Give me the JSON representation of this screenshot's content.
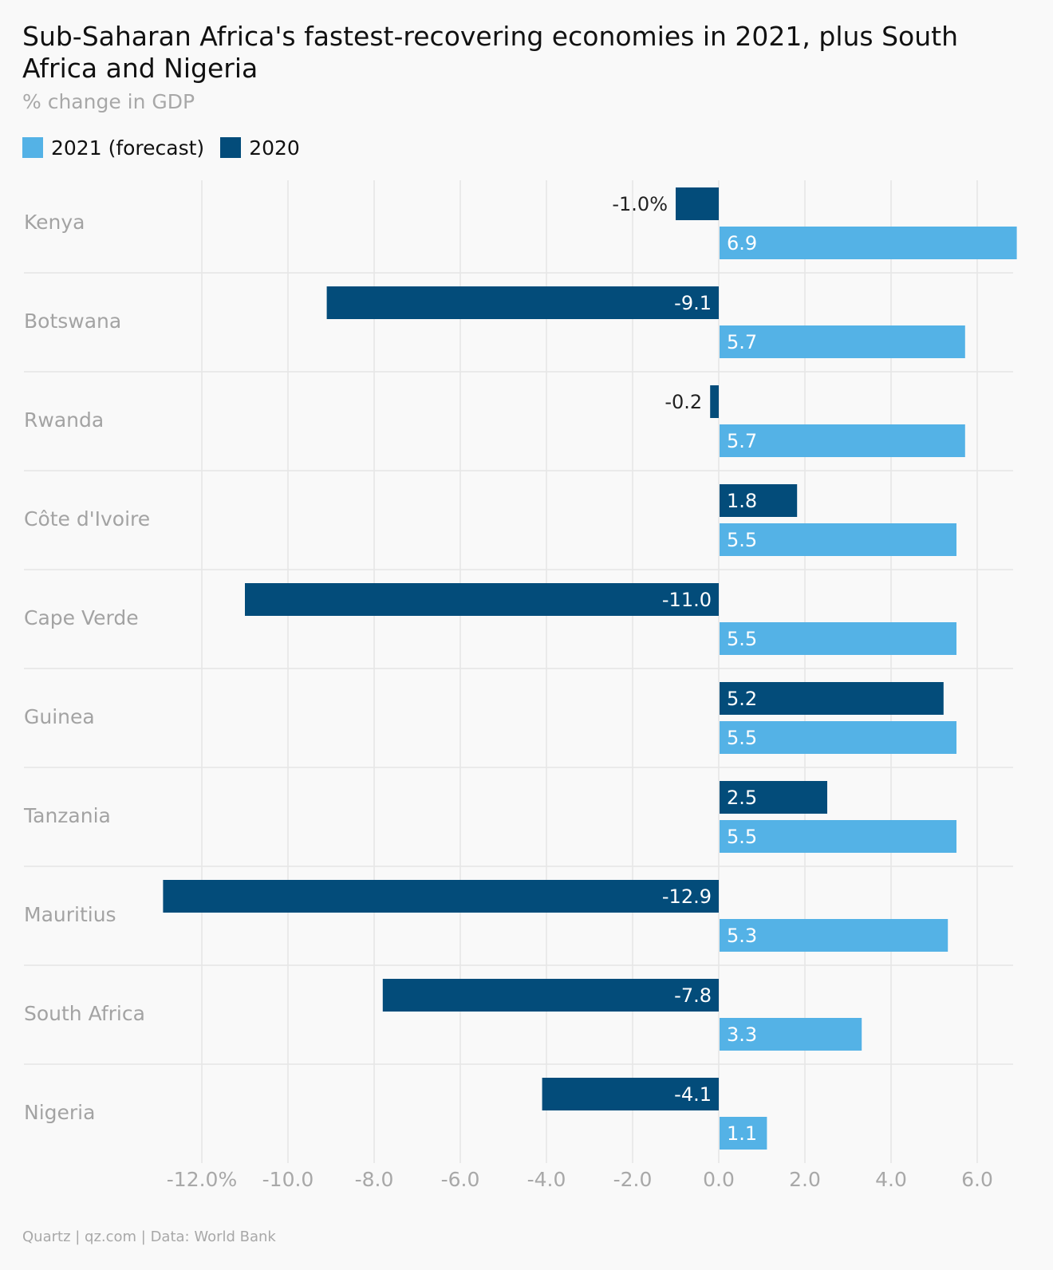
{
  "title": "Sub-Saharan Africa's fastest-recovering economies in 2021, plus South Africa and Nigeria",
  "subtitle": "% change in GDP",
  "source": "Quartz | qz.com | Data: World Bank",
  "colors": {
    "forecast_2021": "#54b2e6",
    "actual_2020": "#034c7a",
    "grid": "#e6e6e6",
    "category_label": "#a3a3a3",
    "tick_label": "#a8a8a8"
  },
  "legend": [
    {
      "label": "2021 (forecast)",
      "color": "#54b2e6"
    },
    {
      "label": "2020",
      "color": "#034c7a"
    }
  ],
  "chart_data": {
    "type": "bar",
    "orientation": "horizontal",
    "categories": [
      "Kenya",
      "Botswana",
      "Rwanda",
      "Côte d'Ivoire",
      "Cape Verde",
      "Guinea",
      "Tanzania",
      "Mauritius",
      "South Africa",
      "Nigeria"
    ],
    "series": [
      {
        "name": "2020",
        "values": [
          -1.0,
          -9.1,
          -0.2,
          1.8,
          -11.0,
          5.2,
          2.5,
          -12.9,
          -7.8,
          -4.1
        ],
        "labels": [
          "-1.0%",
          "-9.1",
          "-0.2",
          "1.8",
          "-11.0",
          "5.2",
          "2.5",
          "-12.9",
          "-7.8",
          "-4.1"
        ]
      },
      {
        "name": "2021 (forecast)",
        "values": [
          6.9,
          5.7,
          5.7,
          5.5,
          5.5,
          5.5,
          5.5,
          5.3,
          3.3,
          1.1
        ],
        "labels": [
          "6.9",
          "5.7",
          "5.7",
          "5.5",
          "5.5",
          "5.5",
          "5.5",
          "5.3",
          "3.3",
          "1.1"
        ]
      }
    ],
    "xlim": [
      -13,
      7
    ],
    "xticks": [
      -12,
      -10,
      -8,
      -6,
      -4,
      -2,
      0,
      2,
      4,
      6
    ],
    "xtick_labels": [
      "-12.0%",
      "-10.0",
      "-8.0",
      "-6.0",
      "-4.0",
      "-2.0",
      "0.0",
      "2.0",
      "4.0",
      "6.0"
    ],
    "grid": true,
    "legend_position": "top-left"
  }
}
